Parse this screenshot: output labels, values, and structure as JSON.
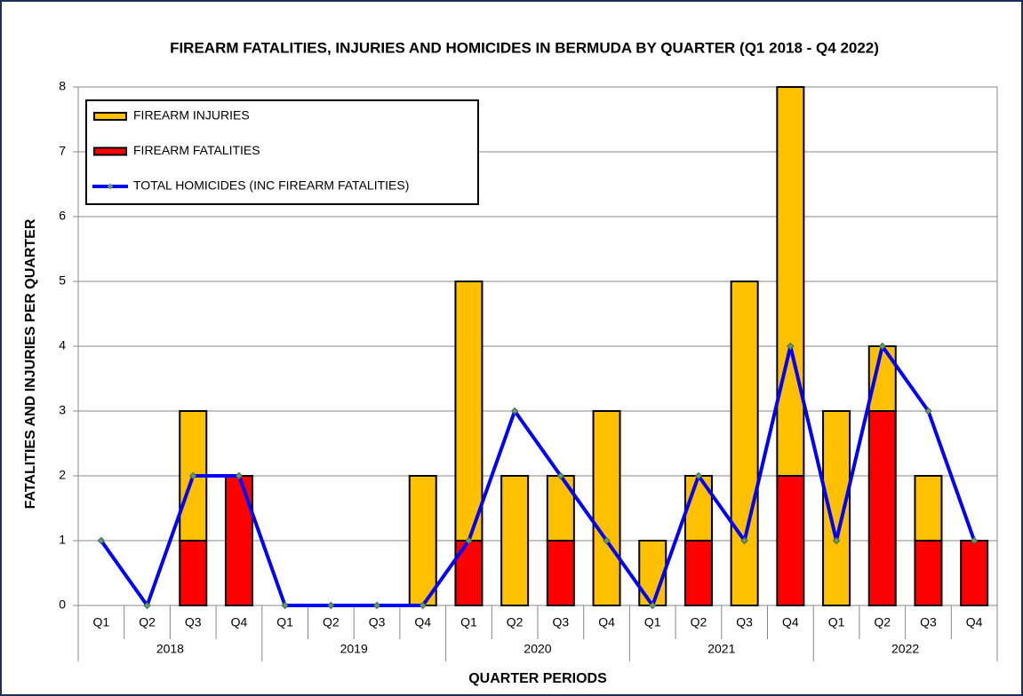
{
  "chart_data": {
    "type": "bar",
    "stacked": true,
    "title": "FIREARM FATALITIES, INJURIES AND HOMICIDES IN BERMUDA BY QUARTER (Q1 2018 - Q4 2022)",
    "y_label": "FATALITIES  AND  INJURIES  PER  QUARTER",
    "x_label": "QUARTER PERIODS",
    "categories": [
      "Q1",
      "Q2",
      "Q3",
      "Q4",
      "Q1",
      "Q2",
      "Q3",
      "Q4",
      "Q1",
      "Q2",
      "Q3",
      "Q4",
      "Q1",
      "Q2",
      "Q3",
      "Q4",
      "Q1",
      "Q2",
      "Q3",
      "Q4"
    ],
    "groups": [
      "2018",
      "2019",
      "2020",
      "2021",
      "2022"
    ],
    "series": [
      {
        "name": "FIREARM INJURIES",
        "type": "bar",
        "color": "#ffc000",
        "values": [
          0,
          0,
          2,
          0,
          0,
          0,
          0,
          2,
          4,
          2,
          1,
          3,
          1,
          1,
          5,
          6,
          3,
          1,
          1,
          0
        ]
      },
      {
        "name": "FIREARM FATALITIES",
        "type": "bar",
        "color": "#ff0000",
        "values": [
          0,
          0,
          1,
          2,
          0,
          0,
          0,
          0,
          1,
          0,
          1,
          0,
          0,
          1,
          0,
          2,
          0,
          3,
          1,
          1
        ]
      },
      {
        "name": "TOTAL HOMICIDES (INC FIREARM FATALITIES)",
        "type": "line",
        "color": "#0000ff",
        "values": [
          1,
          0,
          2,
          2,
          0,
          0,
          0,
          0,
          1,
          3,
          2,
          1,
          0,
          2,
          1,
          4,
          1,
          4,
          3,
          1
        ]
      }
    ],
    "ylim": [
      0,
      8
    ],
    "yticks": [
      0,
      1,
      2,
      3,
      4,
      5,
      6,
      7,
      8
    ],
    "grid": true,
    "legend": "top-left"
  }
}
